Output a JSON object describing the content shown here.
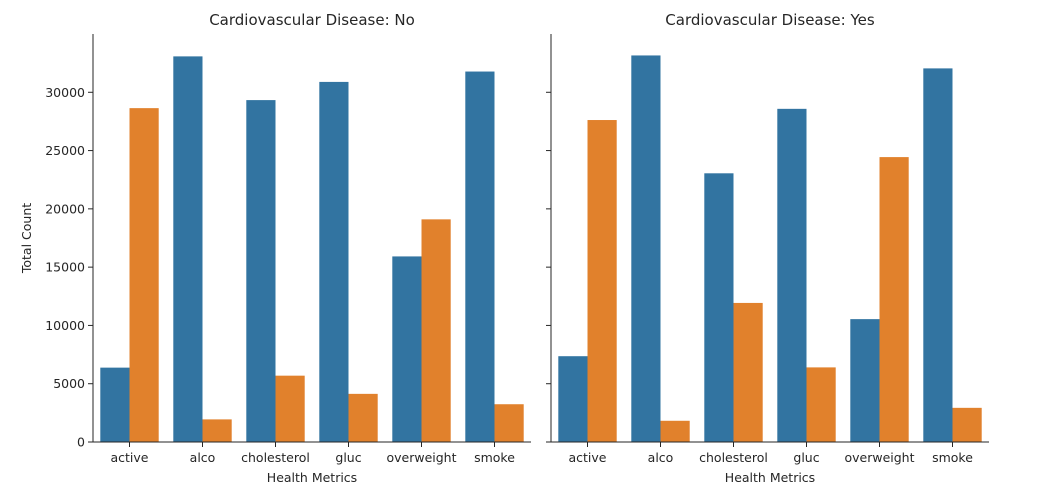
{
  "chart_data": [
    {
      "type": "bar",
      "title": "Cardiovascular Disease: No",
      "xlabel": "Health Metrics",
      "ylabel": "Total Count",
      "ylim": [
        0,
        35000
      ],
      "yticks": [
        0,
        5000,
        10000,
        15000,
        20000,
        25000,
        30000
      ],
      "categories": [
        "active",
        "alco",
        "cholesterol",
        "gluc",
        "overweight",
        "smoke"
      ],
      "series": [
        {
          "color": "#3274a1",
          "values": [
            6380,
            33080,
            29330,
            30890,
            15920,
            31780
          ]
        },
        {
          "color": "#e1812c",
          "values": [
            28640,
            1940,
            5690,
            4130,
            19100,
            3240
          ]
        }
      ]
    },
    {
      "type": "bar",
      "title": "Cardiovascular Disease: Yes",
      "xlabel": "Health Metrics",
      "ylabel": "",
      "ylim": [
        0,
        35000
      ],
      "yticks": [
        0,
        5000,
        10000,
        15000,
        20000,
        25000,
        30000
      ],
      "categories": [
        "active",
        "alco",
        "cholesterol",
        "gluc",
        "overweight",
        "smoke"
      ],
      "series": [
        {
          "color": "#3274a1",
          "values": [
            7360,
            33160,
            23050,
            28580,
            10540,
            32050
          ]
        },
        {
          "color": "#e1812c",
          "values": [
            27620,
            1820,
            11930,
            6400,
            24440,
            2930
          ]
        }
      ]
    }
  ]
}
